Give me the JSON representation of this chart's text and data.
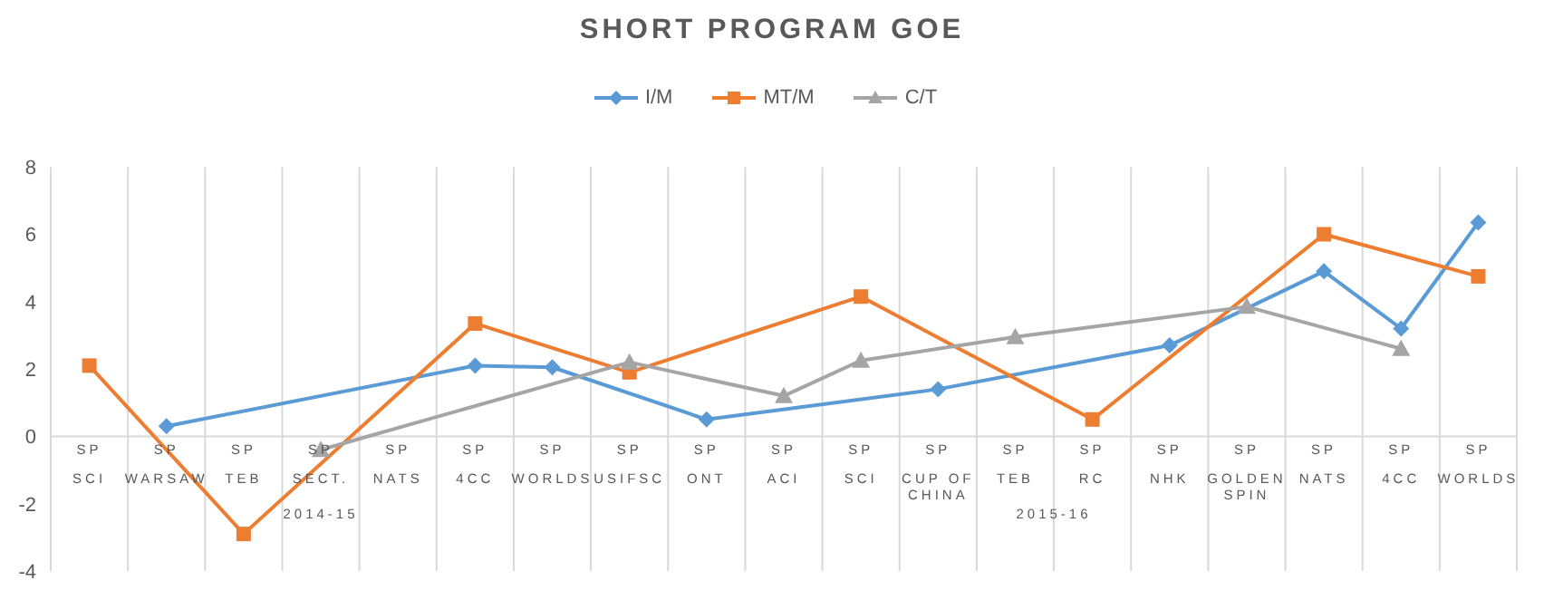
{
  "chart_data": {
    "type": "line",
    "title": "SHORT PROGRAM GOE",
    "categories": [
      "SP\nSCI",
      "SP\nWARSAW",
      "SP\nTEB",
      "SP\nSECT.",
      "SP\nNATS",
      "SP\n4CC",
      "SP\nWORLDS",
      "SP\nUSIFSC",
      "SP\nONT",
      "SP\nACI",
      "SP\nSCI",
      "SP\nCUP OF CHINA",
      "SP\nTEB",
      "SP\nRC",
      "SP\nNHK",
      "SP\nGOLDEN SPIN",
      "SP\nNATS",
      "SP\n4CC",
      "SP\nWORLDS"
    ],
    "series": [
      {
        "name": "I/M",
        "color": "#5b9bd5",
        "marker": "diamond",
        "values": [
          null,
          0.3,
          null,
          null,
          null,
          2.1,
          2.05,
          null,
          0.5,
          null,
          null,
          1.4,
          null,
          null,
          2.7,
          null,
          4.9,
          3.2,
          6.35
        ]
      },
      {
        "name": "MT/M",
        "color": "#ed7d31",
        "marker": "square",
        "values": [
          2.1,
          null,
          -2.9,
          null,
          null,
          3.35,
          null,
          1.9,
          null,
          null,
          4.15,
          null,
          null,
          0.5,
          null,
          null,
          6.0,
          null,
          4.75
        ]
      },
      {
        "name": "C/T",
        "color": "#a5a5a5",
        "marker": "triangle",
        "values": [
          null,
          null,
          null,
          -0.4,
          null,
          null,
          null,
          2.2,
          null,
          1.2,
          2.25,
          null,
          2.95,
          null,
          null,
          3.85,
          null,
          2.6,
          null
        ]
      }
    ],
    "ylim": [
      -4,
      8
    ],
    "yticks": [
      -4,
      -2,
      0,
      2,
      4,
      6,
      8
    ],
    "grid": "x",
    "legend": "top",
    "annotations": [
      "2014-15",
      "2015-16"
    ]
  }
}
